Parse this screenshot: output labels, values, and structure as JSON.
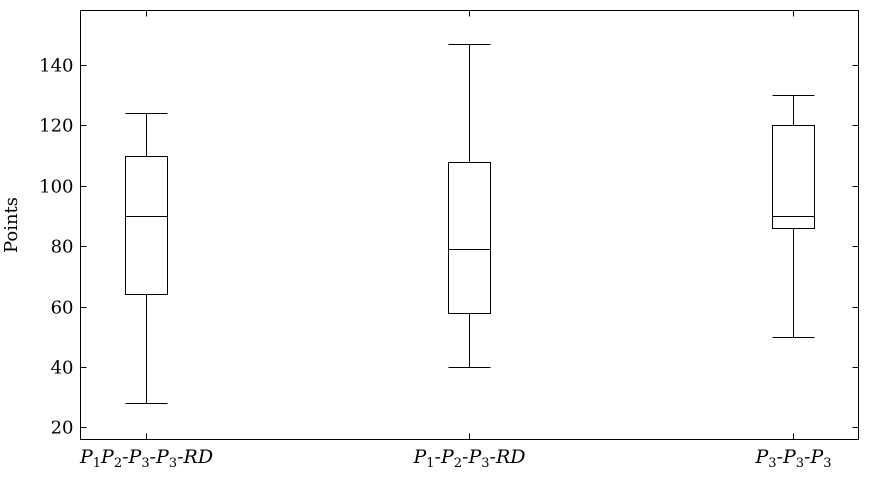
{
  "chart_data": {
    "type": "boxplot",
    "ylabel": "Points",
    "xlabel": "",
    "title": "",
    "ylim": [
      16,
      158
    ],
    "yticks": [
      20,
      40,
      60,
      80,
      100,
      120,
      140
    ],
    "grid": false,
    "categories": [
      {
        "label": "P1P2-P3-P3-RD",
        "parts": [
          {
            "t": "P",
            "sub": "1"
          },
          {
            "t": "P",
            "sub": "2"
          },
          {
            "t": "-P",
            "sub": "3"
          },
          {
            "t": "-P",
            "sub": "3"
          },
          {
            "t": "-RD",
            "sub": ""
          }
        ]
      },
      {
        "label": "P1-P2-P3-RD",
        "parts": [
          {
            "t": "P",
            "sub": "1"
          },
          {
            "t": "-P",
            "sub": "2"
          },
          {
            "t": "-P",
            "sub": "3"
          },
          {
            "t": "-RD",
            "sub": ""
          }
        ]
      },
      {
        "label": "P3-P3-P3",
        "parts": [
          {
            "t": "P",
            "sub": "3"
          },
          {
            "t": "-P",
            "sub": "3"
          },
          {
            "t": "-P",
            "sub": "3"
          }
        ]
      }
    ],
    "boxes": [
      {
        "min": 28,
        "q1": 64,
        "median": 90,
        "q3": 110,
        "max": 124
      },
      {
        "min": 40,
        "q1": 58,
        "median": 79,
        "q3": 108,
        "max": 147
      },
      {
        "min": 50,
        "q1": 86,
        "median": 90,
        "q3": 120,
        "max": 130
      }
    ]
  }
}
